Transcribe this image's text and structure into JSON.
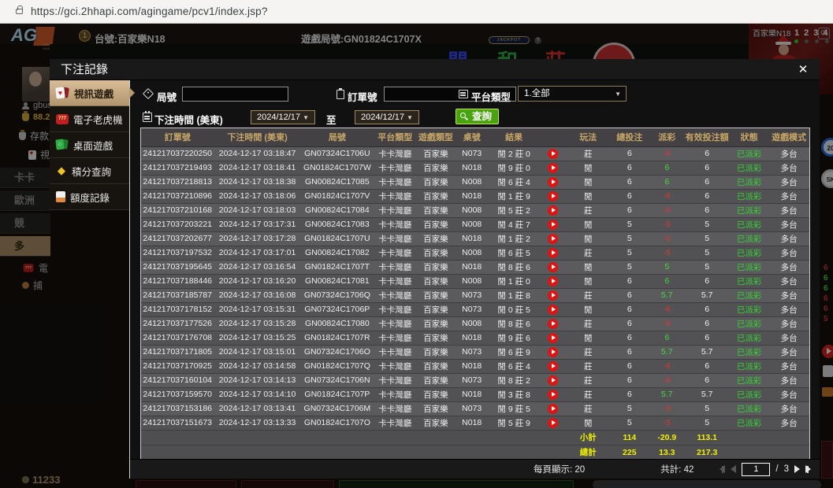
{
  "browser": {
    "url": "https://gci.2hhapi.com/agingame/pcv1/index.jsp?"
  },
  "game_header": {
    "logo": "AG",
    "logo_sub": "ASIA GAMING",
    "seat_number": "1",
    "table_label": "台號:百家樂N18",
    "round_label": "遊戲局號:GN01824C1707X",
    "bet_player": "閒",
    "bet_tie": "和",
    "bet_banker": "莊",
    "jackpot_label": "JACKPOT",
    "jackpot_help": "?",
    "dealing_label": "開牌中"
  },
  "video_panel": {
    "table_name": "百家樂N18",
    "cameras": [
      "1",
      "2",
      "3",
      "4"
    ],
    "refresh_icon": "⟳"
  },
  "background_sidebar": {
    "username": "gbus",
    "balance": "88.2",
    "deposit_label": "存款",
    "video_label": "視",
    "menu_items": [
      "卡卡",
      "歐洲",
      "競",
      "多"
    ],
    "slot_label": "電",
    "fish_label": "捕",
    "viewers": "11233"
  },
  "right_strip": {
    "chip_blue": "20",
    "chip_white": "5K",
    "numbers": [
      {
        "v": "6",
        "c": "#d63a3a"
      },
      {
        "v": "6",
        "c": "#3ddd3d"
      },
      {
        "v": "6",
        "c": "#3ddd3d"
      },
      {
        "v": "6",
        "c": "#d63a3a"
      },
      {
        "v": "6",
        "c": "#d63a3a"
      },
      {
        "v": "5",
        "c": "#d63a3a"
      }
    ]
  },
  "modal": {
    "title": "下注記錄",
    "close_label": "✕",
    "tabs": [
      {
        "label": "視訊遊戲",
        "active": true
      },
      {
        "label": "電子老虎機",
        "active": false
      },
      {
        "label": "桌面遊戲",
        "active": false
      },
      {
        "label": "積分查詢",
        "active": false
      },
      {
        "label": "額度記錄",
        "active": false
      }
    ],
    "filters": {
      "round_label": "局號",
      "round_value": "",
      "order_label": "訂單號",
      "order_value": "",
      "platform_label": "平台類型",
      "platform_value": "1.全部",
      "caret": "▼",
      "time_label": "下注時間 (美東)",
      "date_from": "2024/12/17",
      "to_label": "至",
      "date_to": "2024/12/17",
      "search_label": "查詢"
    },
    "table": {
      "headers": [
        "訂單號",
        "下注時間 (美東)",
        "局號",
        "平台類型",
        "遊戲類型",
        "桌號",
        "結果",
        "",
        "玩法",
        "總投注",
        "派彩",
        "有效投注額",
        "狀態",
        "遊戲模式"
      ],
      "rows": [
        {
          "order": "241217037220250",
          "time": "2024-12-17 03:18:47",
          "round": "GN07324C1706U",
          "platform": "卡卡灣廳",
          "game": "百家樂",
          "table_no": "N073",
          "result": "閒 2 莊 0",
          "bet": "莊",
          "total": "6",
          "payout": "-6",
          "valid": "6",
          "status": "已派彩",
          "mode": "多台"
        },
        {
          "order": "241217037219493",
          "time": "2024-12-17 03:18:41",
          "round": "GN01824C1707W",
          "platform": "卡卡灣廳",
          "game": "百家樂",
          "table_no": "N018",
          "result": "閒 9 莊 0",
          "bet": "閒",
          "total": "6",
          "payout": "6",
          "valid": "6",
          "status": "已派彩",
          "mode": "多台"
        },
        {
          "order": "241217037218813",
          "time": "2024-12-17 03:18:38",
          "round": "GN00824C17085",
          "platform": "卡卡灣廳",
          "game": "百家樂",
          "table_no": "N008",
          "result": "閒 6 莊 4",
          "bet": "閒",
          "total": "6",
          "payout": "6",
          "valid": "6",
          "status": "已派彩",
          "mode": "多台"
        },
        {
          "order": "241217037210896",
          "time": "2024-12-17 03:18:06",
          "round": "GN01824C1707V",
          "platform": "卡卡灣廳",
          "game": "百家樂",
          "table_no": "N018",
          "result": "閒 1 莊 9",
          "bet": "閒",
          "total": "6",
          "payout": "-6",
          "valid": "6",
          "status": "已派彩",
          "mode": "多台"
        },
        {
          "order": "241217037210168",
          "time": "2024-12-17 03:18:03",
          "round": "GN00824C17084",
          "platform": "卡卡灣廳",
          "game": "百家樂",
          "table_no": "N008",
          "result": "閒 5 莊 2",
          "bet": "莊",
          "total": "6",
          "payout": "-6",
          "valid": "6",
          "status": "已派彩",
          "mode": "多台"
        },
        {
          "order": "241217037203221",
          "time": "2024-12-17 03:17:31",
          "round": "GN00824C17083",
          "platform": "卡卡灣廳",
          "game": "百家樂",
          "table_no": "N008",
          "result": "閒 4 莊 7",
          "bet": "閒",
          "total": "5",
          "payout": "-5",
          "valid": "5",
          "status": "已派彩",
          "mode": "多台"
        },
        {
          "order": "241217037202677",
          "time": "2024-12-17 03:17:28",
          "round": "GN01824C1707U",
          "platform": "卡卡灣廳",
          "game": "百家樂",
          "table_no": "N018",
          "result": "閒 1 莊 2",
          "bet": "閒",
          "total": "5",
          "payout": "-5",
          "valid": "5",
          "status": "已派彩",
          "mode": "多台"
        },
        {
          "order": "241217037197532",
          "time": "2024-12-17 03:17:01",
          "round": "GN00824C17082",
          "platform": "卡卡灣廳",
          "game": "百家樂",
          "table_no": "N008",
          "result": "閒 6 莊 5",
          "bet": "莊",
          "total": "5",
          "payout": "-5",
          "valid": "5",
          "status": "已派彩",
          "mode": "多台"
        },
        {
          "order": "241217037195645",
          "time": "2024-12-17 03:16:54",
          "round": "GN01824C1707T",
          "platform": "卡卡灣廳",
          "game": "百家樂",
          "table_no": "N018",
          "result": "閒 8 莊 6",
          "bet": "閒",
          "total": "5",
          "payout": "5",
          "valid": "5",
          "status": "已派彩",
          "mode": "多台"
        },
        {
          "order": "241217037188446",
          "time": "2024-12-17 03:16:20",
          "round": "GN00824C17081",
          "platform": "卡卡灣廳",
          "game": "百家樂",
          "table_no": "N008",
          "result": "閒 1 莊 0",
          "bet": "閒",
          "total": "6",
          "payout": "6",
          "valid": "6",
          "status": "已派彩",
          "mode": "多台"
        },
        {
          "order": "241217037185787",
          "time": "2024-12-17 03:16:08",
          "round": "GN07324C1706Q",
          "platform": "卡卡灣廳",
          "game": "百家樂",
          "table_no": "N073",
          "result": "閒 1 莊 8",
          "bet": "莊",
          "total": "6",
          "payout": "5.7",
          "valid": "5.7",
          "status": "已派彩",
          "mode": "多台"
        },
        {
          "order": "241217037178152",
          "time": "2024-12-17 03:15:31",
          "round": "GN07324C1706P",
          "platform": "卡卡灣廳",
          "game": "百家樂",
          "table_no": "N073",
          "result": "閒 0 莊 5",
          "bet": "閒",
          "total": "6",
          "payout": "-6",
          "valid": "6",
          "status": "已派彩",
          "mode": "多台"
        },
        {
          "order": "241217037177526",
          "time": "2024-12-17 03:15:28",
          "round": "GN00824C17080",
          "platform": "卡卡灣廳",
          "game": "百家樂",
          "table_no": "N008",
          "result": "閒 8 莊 6",
          "bet": "莊",
          "total": "6",
          "payout": "-6",
          "valid": "6",
          "status": "已派彩",
          "mode": "多台"
        },
        {
          "order": "241217037176708",
          "time": "2024-12-17 03:15:25",
          "round": "GN01824C1707R",
          "platform": "卡卡灣廳",
          "game": "百家樂",
          "table_no": "N018",
          "result": "閒 9 莊 6",
          "bet": "閒",
          "total": "6",
          "payout": "6",
          "valid": "6",
          "status": "已派彩",
          "mode": "多台"
        },
        {
          "order": "241217037171805",
          "time": "2024-12-17 03:15:01",
          "round": "GN07324C1706O",
          "platform": "卡卡灣廳",
          "game": "百家樂",
          "table_no": "N073",
          "result": "閒 6 莊 9",
          "bet": "莊",
          "total": "6",
          "payout": "5.7",
          "valid": "5.7",
          "status": "已派彩",
          "mode": "多台"
        },
        {
          "order": "241217037170925",
          "time": "2024-12-17 03:14:58",
          "round": "GN01824C1707Q",
          "platform": "卡卡灣廳",
          "game": "百家樂",
          "table_no": "N018",
          "result": "閒 6 莊 4",
          "bet": "莊",
          "total": "6",
          "payout": "-6",
          "valid": "6",
          "status": "已派彩",
          "mode": "多台"
        },
        {
          "order": "241217037160104",
          "time": "2024-12-17 03:14:13",
          "round": "GN07324C1706N",
          "platform": "卡卡灣廳",
          "game": "百家樂",
          "table_no": "N073",
          "result": "閒 8 莊 2",
          "bet": "莊",
          "total": "6",
          "payout": "-6",
          "valid": "6",
          "status": "已派彩",
          "mode": "多台"
        },
        {
          "order": "241217037159570",
          "time": "2024-12-17 03:14:10",
          "round": "GN01824C1707P",
          "platform": "卡卡灣廳",
          "game": "百家樂",
          "table_no": "N018",
          "result": "閒 3 莊 8",
          "bet": "莊",
          "total": "6",
          "payout": "5.7",
          "valid": "5.7",
          "status": "已派彩",
          "mode": "多台"
        },
        {
          "order": "241217037153186",
          "time": "2024-12-17 03:13:41",
          "round": "GN07324C1706M",
          "platform": "卡卡灣廳",
          "game": "百家樂",
          "table_no": "N073",
          "result": "閒 9 莊 5",
          "bet": "莊",
          "total": "5",
          "payout": "-5",
          "valid": "5",
          "status": "已派彩",
          "mode": "多台"
        },
        {
          "order": "241217037151673",
          "time": "2024-12-17 03:13:33",
          "round": "GN01824C1707O",
          "platform": "卡卡灣廳",
          "game": "百家樂",
          "table_no": "N018",
          "result": "閒 5 莊 9",
          "bet": "閒",
          "total": "5",
          "payout": "-5",
          "valid": "5",
          "status": "已派彩",
          "mode": "多台"
        }
      ],
      "subtotal": {
        "label": "小計",
        "total": "114",
        "payout": "-20.9",
        "valid": "113.1"
      },
      "grand_total": {
        "label": "總計",
        "total": "225",
        "payout": "13.3",
        "valid": "217.3"
      }
    },
    "footer": {
      "per_page": "每頁顯示: 20",
      "total_count": "共計: 42",
      "page": "1",
      "page_sep": "/",
      "page_total": "3"
    }
  }
}
